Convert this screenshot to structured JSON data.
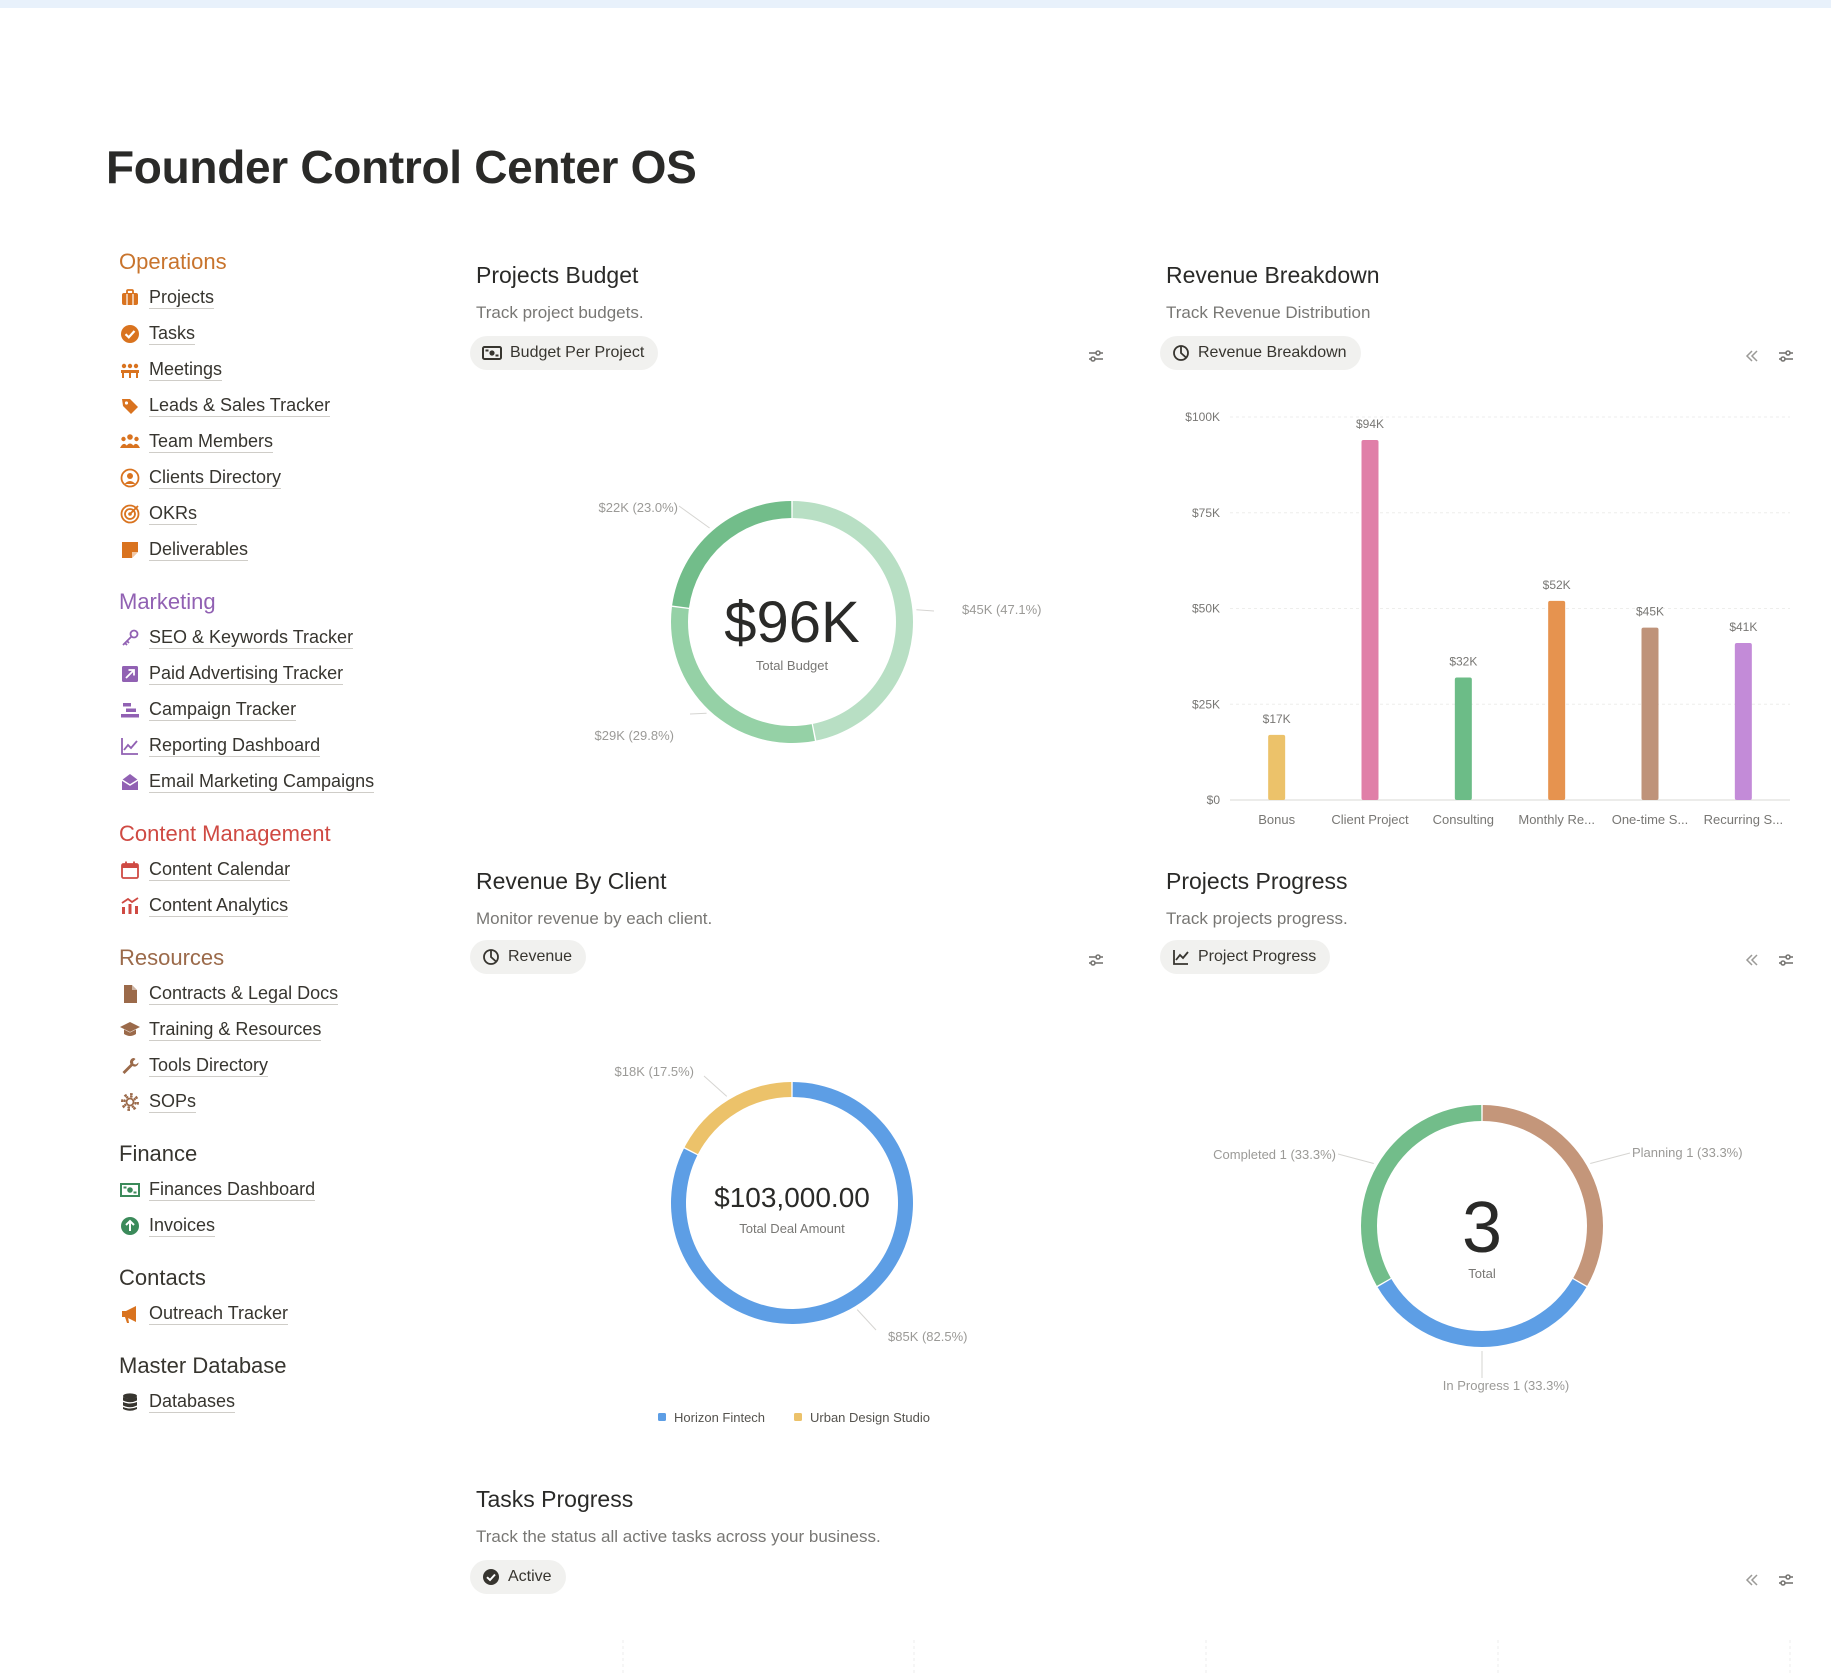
{
  "page": {
    "title": "Founder Control Center OS"
  },
  "sidebar": {
    "sections": [
      {
        "title": "Operations",
        "color": "#c8742d",
        "items": [
          {
            "label": "Projects",
            "icon": "briefcase-icon"
          },
          {
            "label": "Tasks",
            "icon": "check-circle-icon"
          },
          {
            "label": "Meetings",
            "icon": "meeting-icon"
          },
          {
            "label": "Leads & Sales Tracker",
            "icon": "tag-icon"
          },
          {
            "label": "Team Members",
            "icon": "people-icon"
          },
          {
            "label": "Clients Directory",
            "icon": "user-circle-icon"
          },
          {
            "label": "OKRs",
            "icon": "target-icon"
          },
          {
            "label": "Deliverables",
            "icon": "note-icon"
          }
        ]
      },
      {
        "title": "Marketing",
        "color": "#9161b3",
        "items": [
          {
            "label": "SEO & Keywords Tracker",
            "icon": "key-icon"
          },
          {
            "label": "Paid Advertising Tracker",
            "icon": "arrow-up-right-icon"
          },
          {
            "label": "Campaign Tracker",
            "icon": "timeline-icon"
          },
          {
            "label": "Reporting Dashboard",
            "icon": "line-chart-icon"
          },
          {
            "label": "Email Marketing Campaigns",
            "icon": "envelope-icon"
          }
        ]
      },
      {
        "title": "Content Management",
        "color": "#cf4a43",
        "items": [
          {
            "label": "Content Calendar",
            "icon": "calendar-icon"
          },
          {
            "label": "Content Analytics",
            "icon": "analytics-icon"
          }
        ]
      },
      {
        "title": "Resources",
        "color": "#9b6a4a",
        "items": [
          {
            "label": "Contracts & Legal Docs",
            "icon": "document-icon"
          },
          {
            "label": "Training & Resources",
            "icon": "graduation-cap-icon"
          },
          {
            "label": "Tools Directory",
            "icon": "wrench-icon"
          },
          {
            "label": "SOPs",
            "icon": "gear-icon"
          }
        ]
      },
      {
        "title": "Finance",
        "color": "#37352f",
        "items": [
          {
            "label": "Finances Dashboard",
            "icon": "money-icon"
          },
          {
            "label": "Invoices",
            "icon": "arrow-up-circle-icon"
          }
        ]
      },
      {
        "title": "Contacts",
        "color": "#37352f",
        "items": [
          {
            "label": "Outreach Tracker",
            "icon": "megaphone-icon"
          }
        ]
      },
      {
        "title": "Master Database",
        "color": "#37352f",
        "items": [
          {
            "label": "Databases",
            "icon": "database-icon"
          }
        ]
      }
    ]
  },
  "panels": {
    "projects_budget": {
      "title": "Projects Budget",
      "description": "Track project budgets.",
      "chip": "Budget Per Project"
    },
    "revenue_breakdown": {
      "title": "Revenue Breakdown",
      "description": "Track Revenue Distribution",
      "chip": "Revenue Breakdown"
    },
    "revenue_by_client": {
      "title": "Revenue By Client",
      "description": "Monitor revenue by each client.",
      "chip": "Revenue"
    },
    "projects_progress": {
      "title": "Projects Progress",
      "description": "Track projects progress.",
      "chip": "Project Progress"
    },
    "tasks_progress": {
      "title": "Tasks Progress",
      "description": "Track the status all active tasks across your business.",
      "chip": "Active"
    }
  },
  "chart_data": [
    {
      "id": "projects_budget",
      "type": "pie",
      "title": "Budget Per Project",
      "center_value": "$96K",
      "center_label": "Total Budget",
      "slices": [
        {
          "label": "$45K (47.1%)",
          "value": 45,
          "color": "#b8dfc4"
        },
        {
          "label": "$29K (29.8%)",
          "value": 29,
          "color": "#95d1a6"
        },
        {
          "label": "$22K (23.0%)",
          "value": 22,
          "color": "#72bd8a"
        }
      ]
    },
    {
      "id": "revenue_breakdown",
      "type": "bar",
      "title": "Revenue Breakdown",
      "categories": [
        "Bonus",
        "Client Project",
        "Consulting",
        "Monthly Re...",
        "One-time S...",
        "Recurring S..."
      ],
      "values": [
        17,
        94,
        32,
        52,
        45,
        41
      ],
      "value_labels": [
        "$17K",
        "$94K",
        "$32K",
        "$52K",
        "$45K",
        "$41K"
      ],
      "colors": [
        "#ecc26a",
        "#e07fa8",
        "#6cbc87",
        "#e6934f",
        "#bf937a",
        "#c38bd8"
      ],
      "yticks": [
        "$0",
        "$25K",
        "$50K",
        "$75K",
        "$100K"
      ],
      "ylim": [
        0,
        100
      ]
    },
    {
      "id": "revenue_by_client",
      "type": "pie",
      "title": "Revenue",
      "center_value": "$103,000.00",
      "center_label": "Total Deal Amount",
      "slices": [
        {
          "label": "$85K (82.5%)",
          "value": 85,
          "color": "#5d9ee5",
          "legend": "Horizon Fintech"
        },
        {
          "label": "$18K (17.5%)",
          "value": 18,
          "color": "#ecc26a",
          "legend": "Urban Design Studio"
        }
      ]
    },
    {
      "id": "projects_progress",
      "type": "pie",
      "title": "Project Progress",
      "center_value": "3",
      "center_label": "Total",
      "slices": [
        {
          "label": "Planning  1 (33.3%)",
          "value": 1,
          "color": "#c4967a"
        },
        {
          "label": "In Progress  1 (33.3%)",
          "value": 1,
          "color": "#5d9ee5"
        },
        {
          "label": "Completed  1 (33.3%)",
          "value": 1,
          "color": "#72bd8a"
        }
      ]
    }
  ]
}
